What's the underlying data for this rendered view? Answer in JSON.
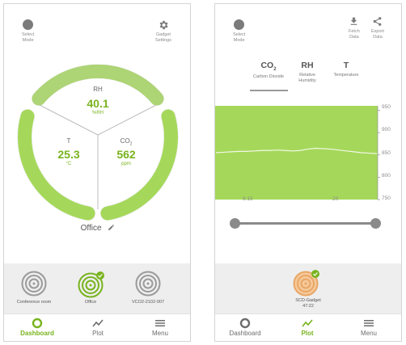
{
  "dashboard": {
    "select_mode": [
      "Select",
      "Mode"
    ],
    "gadget_settings": [
      "Gadget",
      "Settings"
    ],
    "metrics": {
      "rh": {
        "label": "RH",
        "value": "40.1",
        "unit": "%RH"
      },
      "t": {
        "label": "T",
        "value": "25.3",
        "unit": "°C"
      },
      "co2": {
        "label": "CO",
        "label_sub": "2",
        "value": "562",
        "unit": "ppm"
      }
    },
    "location": "Office",
    "sensors": [
      {
        "label": "Conference room",
        "selected": false
      },
      {
        "label": "Office",
        "selected": true
      },
      {
        "label": "VCO2-2102-007",
        "selected": false
      }
    ],
    "nav": [
      {
        "label": "Dashboard",
        "icon": "dashboard-icon",
        "active": true
      },
      {
        "label": "Plot",
        "icon": "plot-icon",
        "active": false
      },
      {
        "label": "Menu",
        "icon": "menu-icon",
        "active": false
      }
    ]
  },
  "plot": {
    "select_mode": [
      "Select",
      "Mode"
    ],
    "fetch_data": [
      "Fetch",
      "Data"
    ],
    "export_data": [
      "Export",
      "Data"
    ],
    "tabs": [
      {
        "big": "CO",
        "big_sub": "2",
        "small": [
          "Carbon Dioxide"
        ],
        "active": true
      },
      {
        "big": "RH",
        "big_sub": "",
        "small": [
          "Relative",
          "Humidity"
        ],
        "active": false
      },
      {
        "big": "T",
        "big_sub": "",
        "small": [
          "Temperature"
        ],
        "active": false
      }
    ],
    "chart_data": {
      "type": "area",
      "x_ticks": [
        "9:15",
        "20"
      ],
      "y_ticks": [
        950,
        900,
        850,
        800,
        750
      ],
      "ylim": [
        750,
        960
      ],
      "series": [
        {
          "values": [
            855,
            856,
            857,
            858,
            858,
            859,
            860,
            860,
            861,
            860,
            859,
            860,
            863,
            865,
            864,
            863,
            861,
            859,
            857,
            855,
            854,
            853
          ]
        }
      ]
    },
    "gadget": {
      "label": "SCD-Gadget",
      "sublabel": "47:22"
    },
    "nav": [
      {
        "label": "Dashboard",
        "icon": "dashboard-icon",
        "active": false
      },
      {
        "label": "Plot",
        "icon": "plot-icon",
        "active": true
      },
      {
        "label": "Menu",
        "icon": "menu-icon",
        "active": false
      }
    ],
    "accent": "#78b31e",
    "fill": "#a5d85a"
  }
}
